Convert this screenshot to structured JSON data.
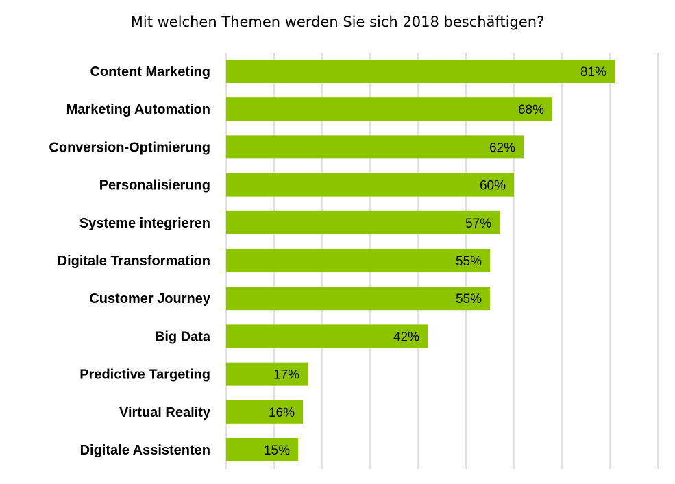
{
  "chart_data": {
    "type": "bar",
    "orientation": "horizontal",
    "title": "Mit welchen Themen werden Sie sich 2018 beschäftigen?",
    "categories": [
      "Content Marketing",
      "Marketing Automation",
      "Conversion-Optimierung",
      "Personalisierung",
      "Systeme integrieren",
      "Digitale Transformation",
      "Customer Journey",
      "Big Data",
      "Predictive Targeting",
      "Virtual Reality",
      "Digitale Assistenten"
    ],
    "values": [
      81,
      68,
      62,
      60,
      57,
      55,
      55,
      42,
      17,
      16,
      15
    ],
    "data_labels": [
      "81%",
      "68%",
      "62%",
      "60%",
      "57%",
      "55%",
      "55%",
      "42%",
      "17%",
      "16%",
      "15%"
    ],
    "xlim": [
      0,
      90
    ],
    "grid": true,
    "legend": false,
    "bar_color": "#8dc400",
    "grid_color": "#d9d9d9"
  }
}
